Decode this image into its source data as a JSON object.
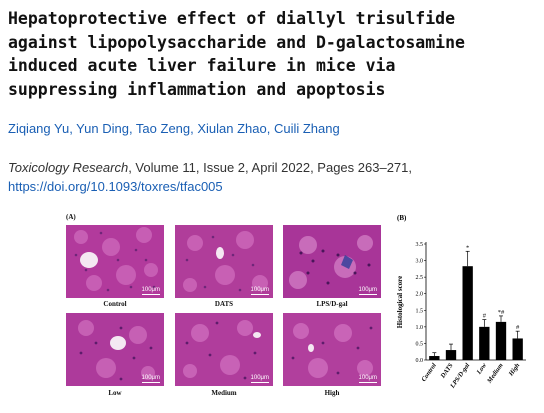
{
  "article": {
    "title_lines": [
      "Hepatoprotective effect of diallyl trisulfide",
      "against lipopolysaccharide and D-galactosamine",
      "induced acute liver failure in mice via",
      "suppressing inflammation and apoptosis"
    ],
    "authors": "Ziqiang Yu, Yun Ding, Tao Zeng, Xiulan Zhao, Cuili Zhang",
    "journal": "Toxicology Research",
    "citation_rest": ", Volume 11, Issue 2, April 2022, Pages 263–271,",
    "doi": "https://doi.org/10.1093/toxres/tfac005"
  },
  "figure": {
    "panel_a_label": "(A)",
    "panel_b_label": "(B)",
    "scale_bar": "100μm",
    "images": [
      {
        "caption": "Control"
      },
      {
        "caption": "DATS"
      },
      {
        "caption": "LPS/D-gal"
      },
      {
        "caption": "Low"
      },
      {
        "caption": "Medium"
      },
      {
        "caption": "High"
      }
    ]
  },
  "chart_data": {
    "type": "bar",
    "ylabel": "Histological score",
    "ylim": [
      0,
      3.5
    ],
    "yticks": [
      "0.0",
      "0.5",
      "1.0",
      "1.5",
      "2.0",
      "2.5",
      "3.0",
      "3.5"
    ],
    "categories": [
      "Control",
      "DATS",
      "LPS/D-gal",
      "Low",
      "Medium",
      "High"
    ],
    "values": [
      0.12,
      0.3,
      2.83,
      1.0,
      1.15,
      0.65
    ],
    "errors": [
      0.1,
      0.18,
      0.45,
      0.22,
      0.18,
      0.22
    ],
    "annotations": [
      "",
      "",
      "*",
      "#",
      "*#",
      "#"
    ],
    "bar_color": "#000000"
  }
}
